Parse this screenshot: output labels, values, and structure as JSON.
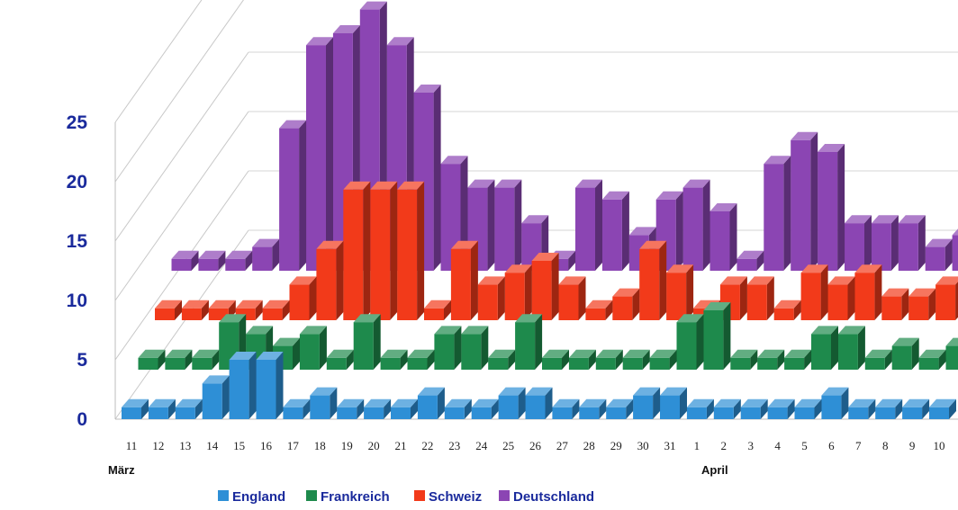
{
  "chart_data": {
    "type": "bar",
    "title": "",
    "xlabel": "",
    "ylabel": "",
    "ylim": [
      0,
      25
    ],
    "yticks": [
      "0",
      "5",
      "10",
      "15",
      "20",
      "25"
    ],
    "grid": true,
    "legend_position": "bottom",
    "categories": [
      "11",
      "12",
      "13",
      "14",
      "15",
      "16",
      "17",
      "18",
      "19",
      "20",
      "21",
      "22",
      "23",
      "24",
      "25",
      "26",
      "27",
      "28",
      "29",
      "30",
      "31",
      "1",
      "2",
      "3",
      "4",
      "5",
      "6",
      "7",
      "8",
      "9",
      "10"
    ],
    "month_labels": [
      {
        "label": "März",
        "at_category": "11"
      },
      {
        "label": "April",
        "at_category": "1"
      }
    ],
    "series": [
      {
        "name": "England",
        "color": "#2e8fd6",
        "values": [
          1,
          1,
          1,
          3,
          5,
          5,
          1,
          2,
          1,
          1,
          1,
          2,
          1,
          1,
          2,
          2,
          1,
          1,
          1,
          2,
          2,
          1,
          1,
          1,
          1,
          1,
          2,
          1,
          1,
          1,
          1
        ]
      },
      {
        "name": "Frankreich",
        "color": "#1e8a4c",
        "values": [
          1,
          1,
          1,
          4,
          3,
          2,
          3,
          1,
          4,
          1,
          1,
          3,
          3,
          1,
          4,
          1,
          1,
          1,
          1,
          1,
          4,
          5,
          1,
          1,
          1,
          3,
          3,
          1,
          2,
          1,
          2
        ]
      },
      {
        "name": "Schweiz",
        "color": "#f23a1a",
        "values": [
          1,
          1,
          1,
          1,
          1,
          3,
          6,
          11,
          11,
          11,
          1,
          6,
          3,
          4,
          5,
          3,
          1,
          2,
          6,
          4,
          1,
          3,
          3,
          1,
          4,
          3,
          4,
          2,
          2,
          3,
          1
        ]
      },
      {
        "name": "Deutschland",
        "color": "#8b45b3",
        "values": [
          1,
          1,
          1,
          2,
          12,
          19,
          20,
          22,
          19,
          15,
          9,
          7,
          7,
          4,
          1,
          7,
          6,
          3,
          6,
          7,
          5,
          1,
          9,
          11,
          10,
          4,
          4,
          4,
          2,
          3,
          2
        ]
      }
    ]
  },
  "legend": {
    "england": "England",
    "frankreich": "Frankreich",
    "schweiz": "Schweiz",
    "deutschland": "Deutschland"
  },
  "months": {
    "march": "März",
    "april": "April"
  }
}
